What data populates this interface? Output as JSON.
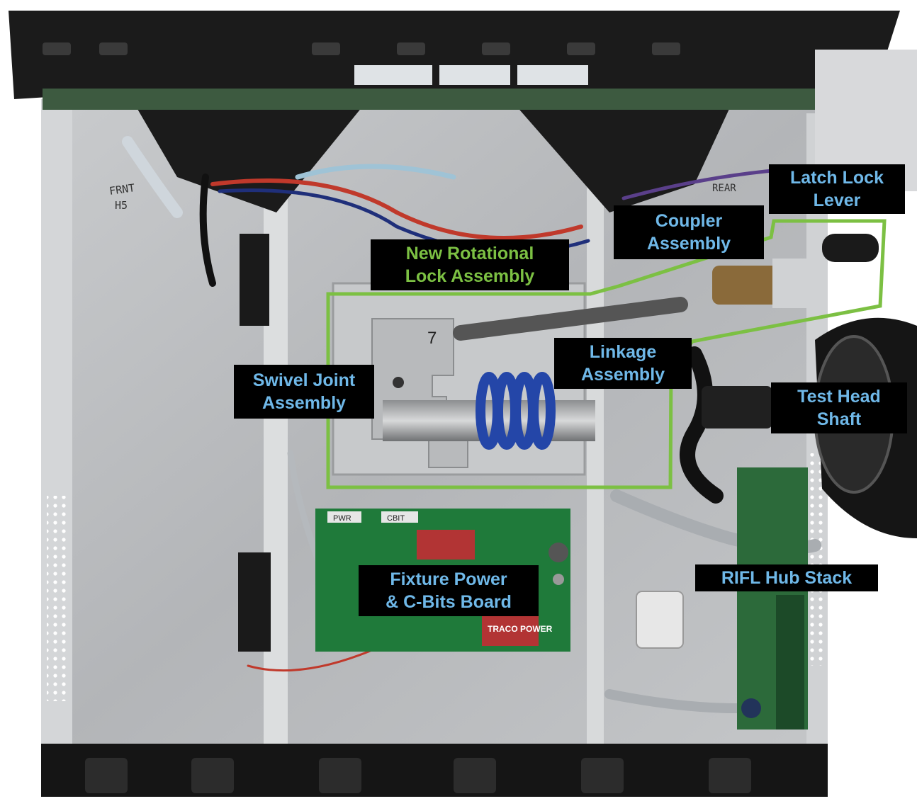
{
  "labels": {
    "latch_lock_lever": [
      "Latch Lock",
      "Lever"
    ],
    "coupler_assembly": [
      "Coupler",
      "Assembly"
    ],
    "new_rotational_lock_assembly": [
      "New Rotational",
      "Lock Assembly"
    ],
    "swivel_joint_assembly": [
      "Swivel Joint",
      "Assembly"
    ],
    "linkage_assembly": [
      "Linkage",
      "Assembly"
    ],
    "test_head_shaft": [
      "Test Head",
      "Shaft"
    ],
    "fixture_power_board": [
      "Fixture Power",
      "& C-Bits Board"
    ],
    "rifl_hub_stack": [
      "RIFL Hub Stack"
    ]
  },
  "photo_text": {
    "front_marking": "FRNT",
    "front_h5": "H5",
    "rear_marking": "REAR",
    "pwr_label": "PWR",
    "cbit_label": "CBIT",
    "traco_brand": "TRACO POWER",
    "block_marking": "7"
  },
  "colors": {
    "callout_bg": "#000000",
    "callout_text_blue": "#6fb8e8",
    "callout_text_green": "#7cc043",
    "highlight_outline": "#7cc043"
  }
}
